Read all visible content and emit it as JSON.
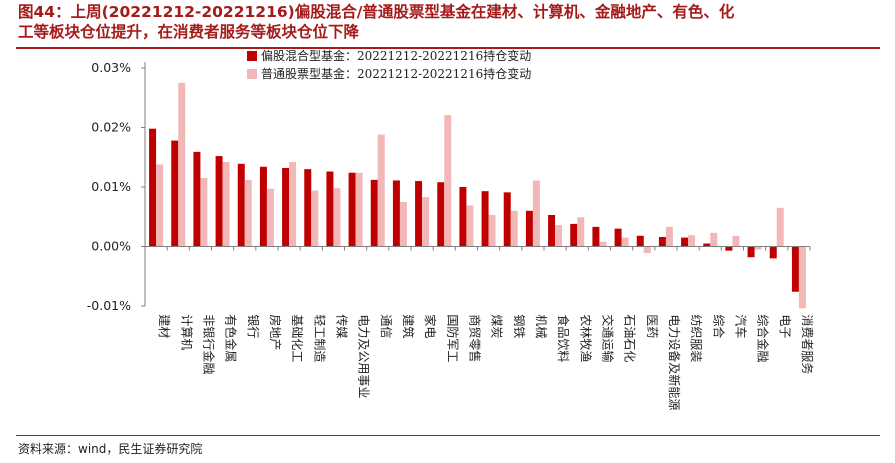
{
  "header": {
    "title_line1": "图44：上周(20221212-20221216)偏股混合/普通股票型基金在建材、计算机、金融地产、有色、化",
    "title_line2": "工等板块仓位提升，在消费者服务等板块仓位下降"
  },
  "footer": {
    "source": "资料来源：wind，民生证券研究院"
  },
  "colors": {
    "series1": "#c00000",
    "series2": "#f2b8b8",
    "title": "#a51b1b"
  },
  "chart_data": {
    "type": "bar",
    "title": "",
    "xlabel": "",
    "ylabel": "",
    "ylim": [
      -0.01,
      0.03
    ],
    "yticks": [
      -0.01,
      0.0,
      0.01,
      0.02,
      0.03
    ],
    "ytick_labels": [
      "-0.01%",
      "0.00%",
      "0.01%",
      "0.02%",
      "0.03%"
    ],
    "legend_position": "top-center",
    "grid": false,
    "categories": [
      "建材",
      "计算机",
      "非银行金融",
      "有色金属",
      "银行",
      "房地产",
      "基础化工",
      "轻工制造",
      "传媒",
      "电力及公用事业",
      "通信",
      "建筑",
      "家电",
      "国防军工",
      "商贸零售",
      "煤炭",
      "钢铁",
      "机械",
      "食品饮料",
      "农林牧渔",
      "交通运输",
      "石油石化",
      "医药",
      "电力设备及新能源",
      "纺织服装",
      "综合",
      "汽车",
      "综合金融",
      "电子",
      "消费者服务"
    ],
    "series": [
      {
        "name": "偏股混合型基金：20221212-20221216持仓变动",
        "values": [
          0.0198,
          0.0178,
          0.0159,
          0.0152,
          0.0139,
          0.0134,
          0.0132,
          0.013,
          0.0126,
          0.0124,
          0.0112,
          0.0111,
          0.011,
          0.0108,
          0.01,
          0.0093,
          0.0091,
          0.006,
          0.0053,
          0.0038,
          0.0033,
          0.003,
          0.0018,
          0.0016,
          0.0015,
          0.0005,
          -0.0007,
          -0.0018,
          -0.002,
          -0.0076
        ]
      },
      {
        "name": "普通股票型基金：20221212-20221216持仓变动",
        "values": [
          0.0138,
          0.0275,
          0.0115,
          0.0142,
          0.0112,
          0.0097,
          0.0142,
          0.0094,
          0.0098,
          0.0124,
          0.0188,
          0.0075,
          0.0083,
          0.0221,
          0.0069,
          0.0053,
          0.006,
          0.0111,
          0.0036,
          0.0049,
          0.0008,
          0.0015,
          -0.0011,
          0.0033,
          0.0019,
          0.0023,
          0.0018,
          -0.0005,
          0.0065,
          -0.0104
        ]
      }
    ]
  }
}
